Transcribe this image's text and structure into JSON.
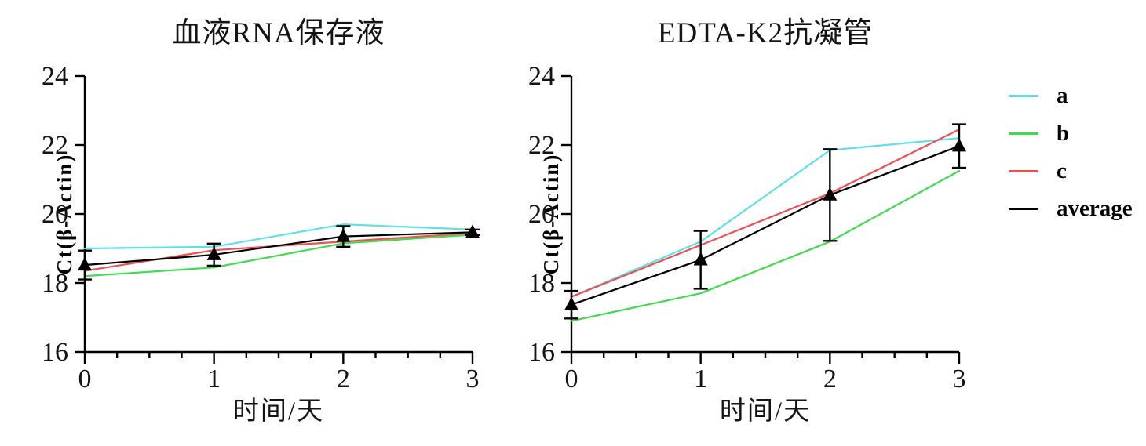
{
  "page": {
    "background": "#ffffff"
  },
  "legend": {
    "items": [
      {
        "label": "a",
        "color": "#5fe0e6"
      },
      {
        "label": "b",
        "color": "#3fdc50"
      },
      {
        "label": "c",
        "color": "#f04f52"
      },
      {
        "label": "average",
        "color": "#000000"
      }
    ]
  },
  "chart_data": [
    {
      "type": "line",
      "title": "血液RNA保存液",
      "xlabel": "时间/天",
      "ylabel": "Ct(β-Actin)",
      "x": [
        0,
        1,
        2,
        3
      ],
      "xticks": [
        0,
        1,
        2,
        3
      ],
      "x_minor_step": 0.25,
      "xlim": [
        0,
        3
      ],
      "yticks": [
        16,
        18,
        20,
        22,
        24
      ],
      "ylim": [
        16,
        24
      ],
      "grid": false,
      "legend_position": "right-outside",
      "series": [
        {
          "name": "a",
          "color": "#5fe0e6",
          "values": [
            19.0,
            19.05,
            19.7,
            19.55
          ]
        },
        {
          "name": "b",
          "color": "#3fdc50",
          "values": [
            18.2,
            18.45,
            19.15,
            19.4
          ]
        },
        {
          "name": "c",
          "color": "#f04f52",
          "values": [
            18.35,
            18.95,
            19.2,
            19.45
          ]
        },
        {
          "name": "average",
          "color": "#000000",
          "marker": "triangle",
          "values": [
            18.52,
            18.82,
            19.35,
            19.47
          ],
          "error_sd": [
            0.42,
            0.32,
            0.3,
            0.08
          ]
        }
      ]
    },
    {
      "type": "line",
      "title": "EDTA-K2抗凝管",
      "xlabel": "时间/天",
      "ylabel": "Ct(β-Actin)",
      "x": [
        0,
        1,
        2,
        3
      ],
      "xticks": [
        0,
        1,
        2,
        3
      ],
      "x_minor_step": 0.25,
      "xlim": [
        0,
        3
      ],
      "yticks": [
        16,
        18,
        20,
        22,
        24
      ],
      "ylim": [
        16,
        24
      ],
      "grid": false,
      "legend_position": "right-outside",
      "series": [
        {
          "name": "a",
          "color": "#5fe0e6",
          "values": [
            17.6,
            19.2,
            21.85,
            22.2
          ]
        },
        {
          "name": "b",
          "color": "#3fdc50",
          "values": [
            16.9,
            17.7,
            19.2,
            21.25
          ]
        },
        {
          "name": "c",
          "color": "#f04f52",
          "values": [
            17.6,
            19.1,
            20.6,
            22.45
          ]
        },
        {
          "name": "average",
          "color": "#000000",
          "marker": "triangle",
          "values": [
            17.37,
            18.67,
            20.55,
            21.97
          ],
          "error_sd": [
            0.4,
            0.84,
            1.33,
            0.63
          ]
        }
      ]
    }
  ]
}
